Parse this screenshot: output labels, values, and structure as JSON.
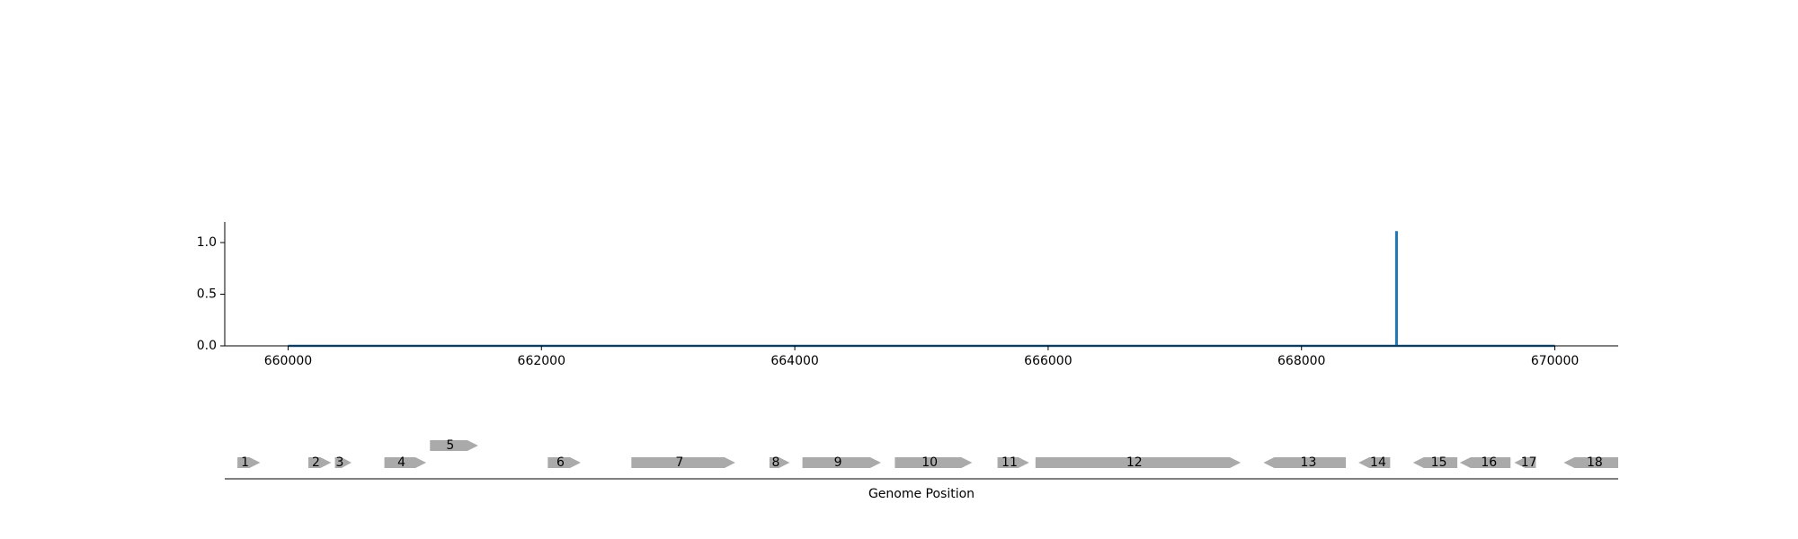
{
  "chart_data": [
    {
      "type": "line",
      "title": "",
      "xlabel": "",
      "ylabel": "",
      "xlim": [
        659500,
        670500
      ],
      "ylim": [
        0,
        1.2
      ],
      "x_ticks": [
        660000,
        662000,
        664000,
        666000,
        668000,
        670000
      ],
      "x_tick_labels": [
        "660000",
        "662000",
        "664000",
        "666000",
        "668000",
        "670000"
      ],
      "y_ticks": [
        0.0,
        0.5,
        1.0
      ],
      "y_tick_labels": [
        "0.0",
        "0.5",
        "1.0"
      ],
      "grid": false,
      "series": [
        {
          "color": "#1f77b4",
          "x": [
            660000,
            668748,
            668748,
            668752,
            668752,
            670000
          ],
          "y": [
            0,
            0,
            1.1,
            1.1,
            0,
            0
          ]
        }
      ]
    },
    {
      "type": "gene-map",
      "xlabel": "Genome Position",
      "xlim": [
        659500,
        670500
      ],
      "gene_color": "#aaaaaa",
      "genes": [
        {
          "label": "1",
          "start": 659600,
          "end": 659780,
          "strand": "+",
          "track": 0
        },
        {
          "label": "2",
          "start": 660160,
          "end": 660340,
          "strand": "+",
          "track": 0
        },
        {
          "label": "3",
          "start": 660370,
          "end": 660500,
          "strand": "+",
          "track": 0
        },
        {
          "label": "4",
          "start": 660760,
          "end": 661090,
          "strand": "+",
          "track": 0
        },
        {
          "label": "5",
          "start": 661120,
          "end": 661500,
          "strand": "+",
          "track": 1
        },
        {
          "label": "6",
          "start": 662050,
          "end": 662310,
          "strand": "+",
          "track": 0
        },
        {
          "label": "7",
          "start": 662710,
          "end": 663530,
          "strand": "+",
          "track": 0
        },
        {
          "label": "8",
          "start": 663800,
          "end": 663960,
          "strand": "+",
          "track": 0
        },
        {
          "label": "9",
          "start": 664060,
          "end": 664680,
          "strand": "+",
          "track": 0
        },
        {
          "label": "10",
          "start": 664790,
          "end": 665400,
          "strand": "+",
          "track": 0
        },
        {
          "label": "11",
          "start": 665600,
          "end": 665850,
          "strand": "+",
          "track": 0
        },
        {
          "label": "12",
          "start": 665900,
          "end": 667520,
          "strand": "+",
          "track": 0
        },
        {
          "label": "13",
          "start": 667700,
          "end": 668350,
          "strand": "-",
          "track": 0
        },
        {
          "label": "14",
          "start": 668450,
          "end": 668700,
          "strand": "-",
          "track": 0
        },
        {
          "label": "15",
          "start": 668880,
          "end": 669230,
          "strand": "-",
          "track": 0
        },
        {
          "label": "16",
          "start": 669250,
          "end": 669650,
          "strand": "-",
          "track": 0
        },
        {
          "label": "17",
          "start": 669680,
          "end": 669850,
          "strand": "-",
          "track": 0
        },
        {
          "label": "18",
          "start": 670070,
          "end": 670500,
          "strand": "-",
          "track": 0
        }
      ]
    }
  ]
}
